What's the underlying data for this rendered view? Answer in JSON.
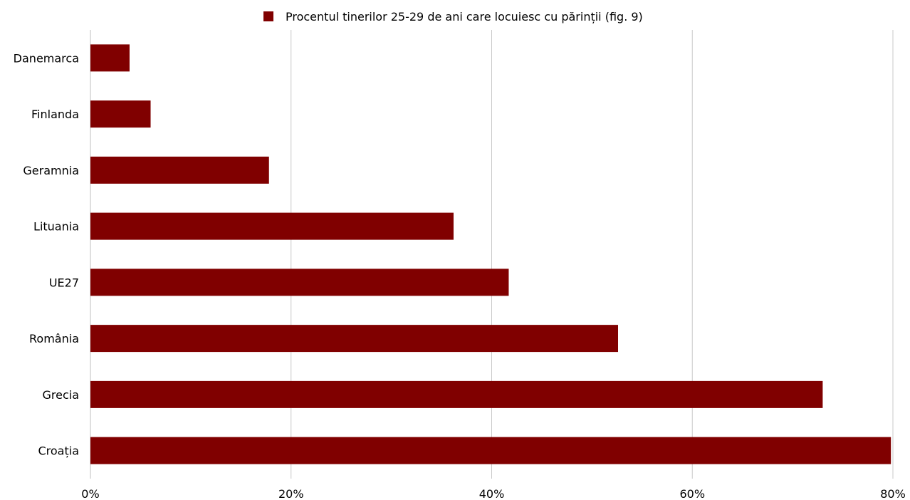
{
  "chart_data": {
    "type": "bar",
    "orientation": "horizontal",
    "title": "",
    "xlabel": "",
    "ylabel": "",
    "categories": [
      "Danemarca",
      "Finlanda",
      "Geramnia",
      "Lituania",
      "UE27",
      "România",
      "Grecia",
      "Croația"
    ],
    "series": [
      {
        "name": "Procentul tinerilor 25-29 de ani care locuiesc cu părinții (fig. 9)",
        "values": [
          3.9,
          6.0,
          17.8,
          36.2,
          41.7,
          52.6,
          73.0,
          79.8
        ],
        "color": "#800000"
      }
    ],
    "xlim": [
      0,
      80
    ],
    "x_ticks": [
      "0%",
      "20%",
      "40%",
      "60%",
      "80%"
    ],
    "grid": "vertical",
    "legend_position": "top-center"
  }
}
